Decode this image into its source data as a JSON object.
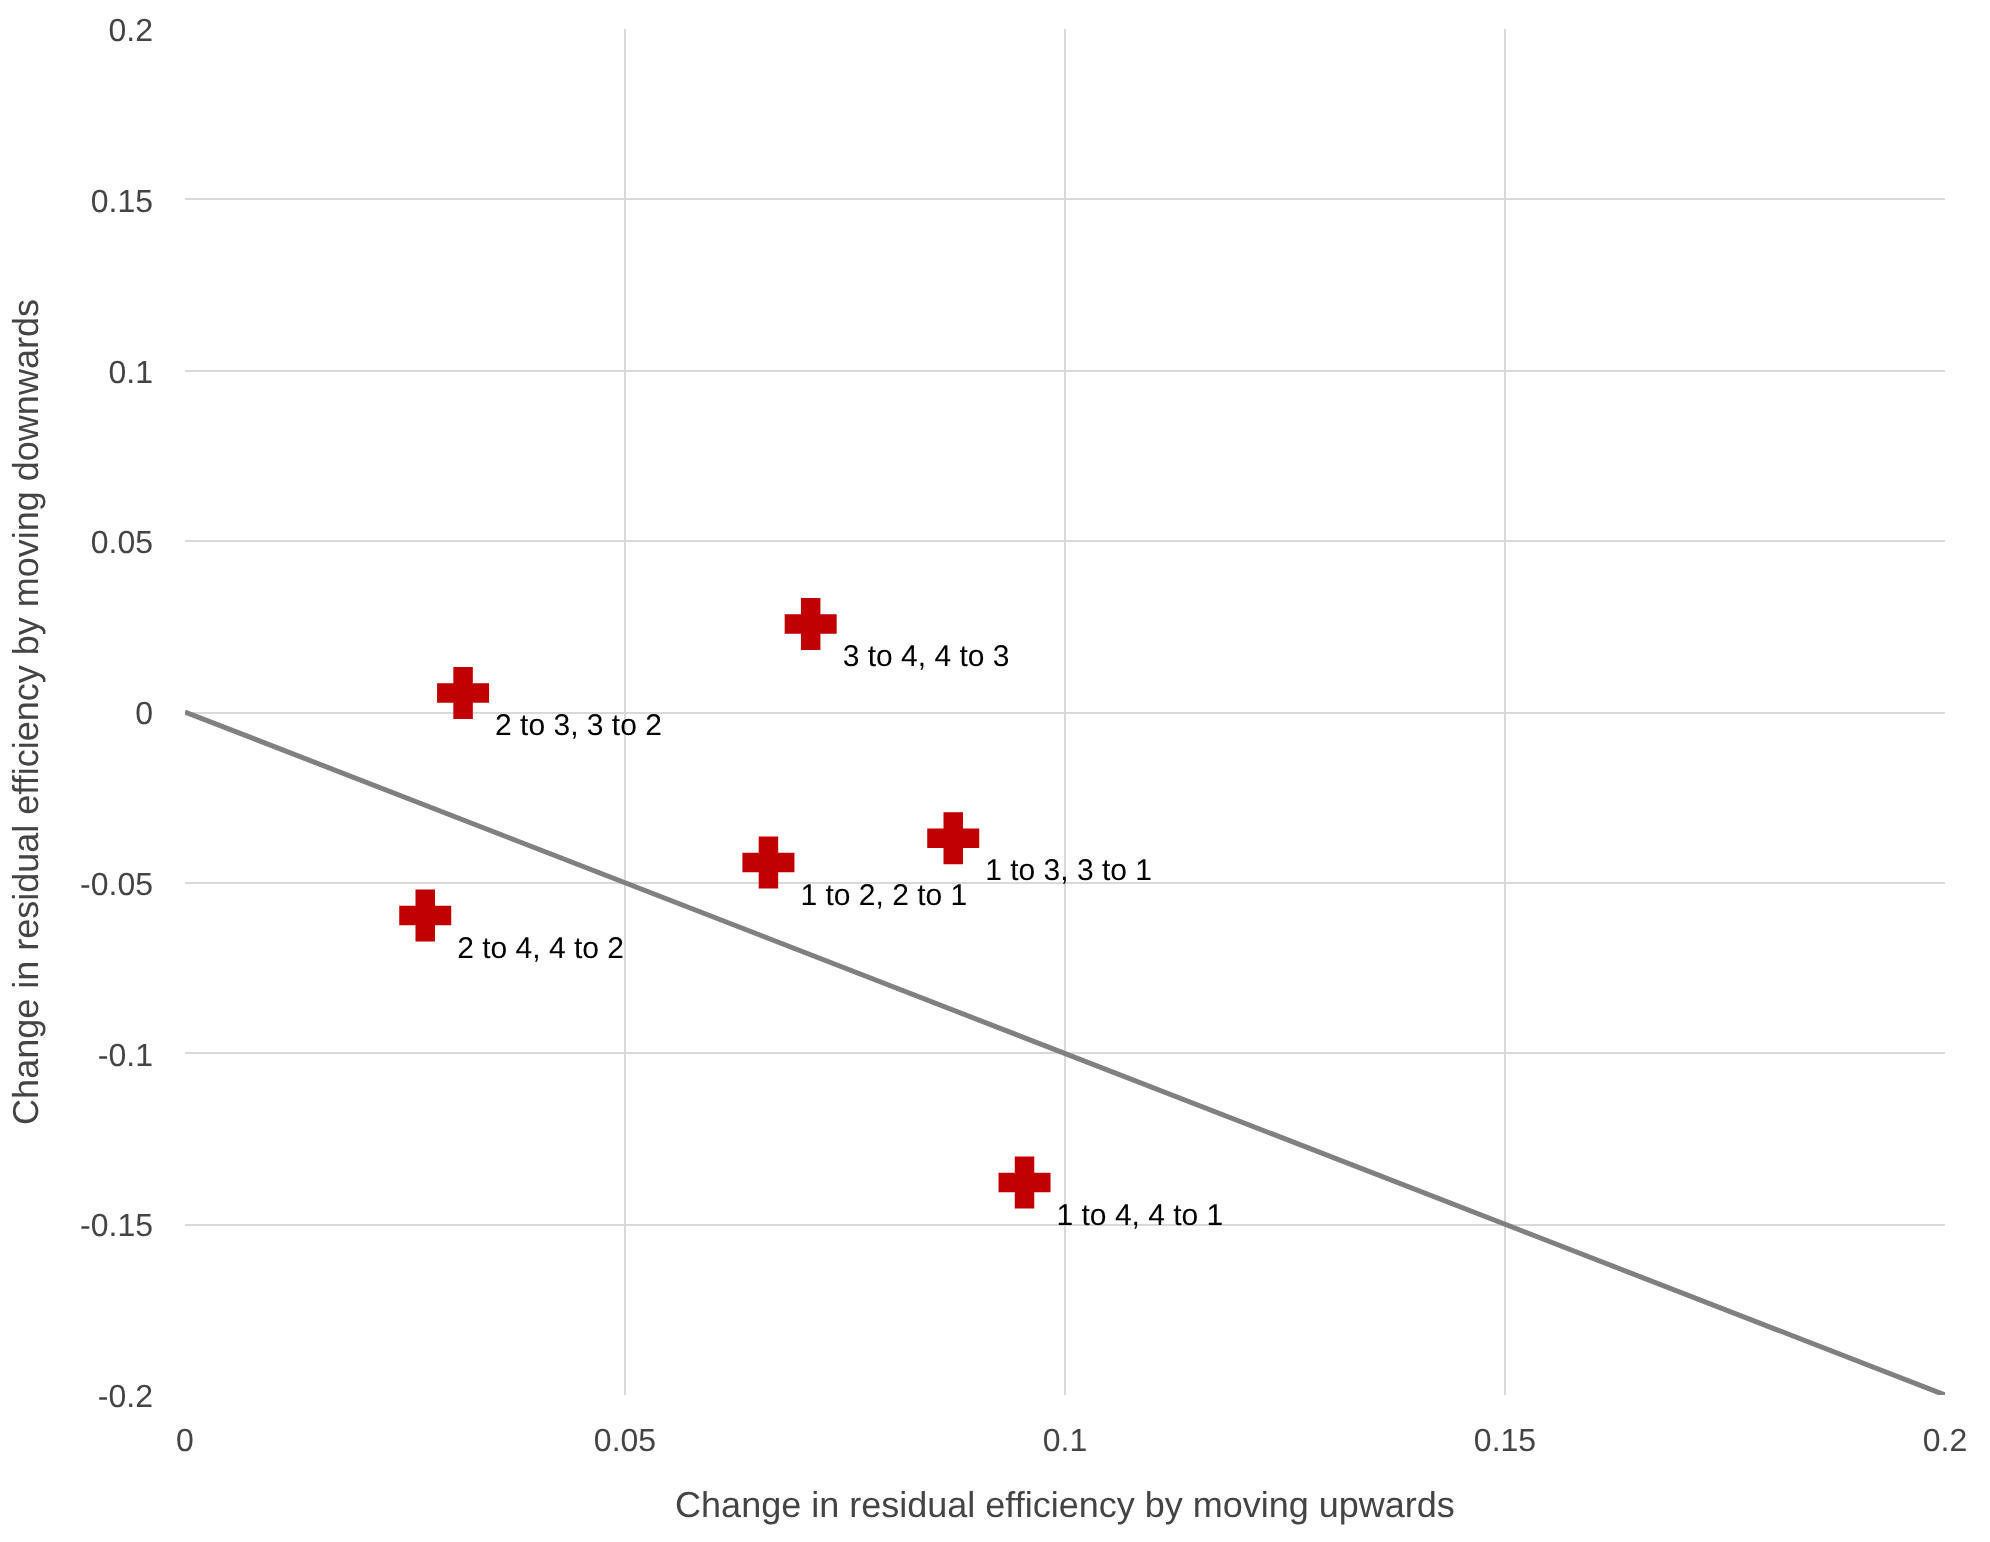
{
  "chart_data": {
    "type": "scatter",
    "xlabel": "Change in residual efficiency by moving upwards",
    "ylabel": "Change in residual efficiency by moving downwards",
    "xlim": [
      0,
      0.2
    ],
    "ylim": [
      -0.2,
      0.2
    ],
    "xticks": [
      0,
      0.05,
      0.1,
      0.15,
      0.2
    ],
    "yticks": [
      -0.2,
      -0.15,
      -0.1,
      -0.05,
      0,
      0.05,
      0.1,
      0.15,
      0.2
    ],
    "grid": true,
    "marker": "cross",
    "series": [
      {
        "type": "scatter",
        "color": "#c00000",
        "x": [
          0.0316,
          0.0711,
          0.0273,
          0.0663,
          0.0873,
          0.0954
        ],
        "values": [
          0.0056,
          0.0258,
          -0.0596,
          -0.0441,
          -0.037,
          -0.1378
        ]
      },
      {
        "type": "line",
        "color": "#808080",
        "marker": "none",
        "x": [
          0,
          0.2
        ],
        "values": [
          0,
          -0.2
        ]
      }
    ],
    "annotations": [
      {
        "text": "2 to 3, 3 to 2",
        "x": 0.0316,
        "y": 0.0056
      },
      {
        "text": "3 to 4, 4 to 3",
        "x": 0.0711,
        "y": 0.0258
      },
      {
        "text": "2 to 4, 4 to 2",
        "x": 0.0273,
        "y": -0.0596
      },
      {
        "text": "1 to 2, 2 to 1",
        "x": 0.0663,
        "y": -0.0441
      },
      {
        "text": "1 to 3, 3 to 1",
        "x": 0.0873,
        "y": -0.037
      },
      {
        "text": "1 to 4, 4 to 1",
        "x": 0.0954,
        "y": -0.1378
      }
    ]
  }
}
